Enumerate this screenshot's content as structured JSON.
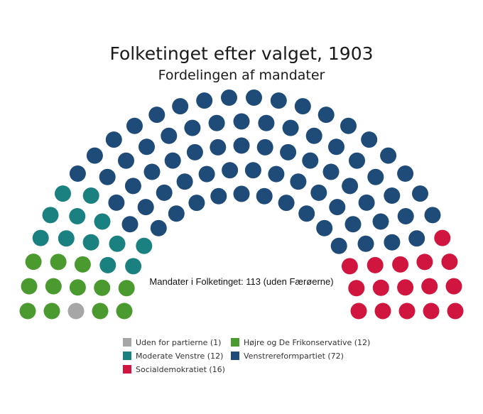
{
  "chart_data": {
    "type": "parliament",
    "title": "Folketinget efter valget, 1903",
    "subtitle": "Fordelingen af mandater",
    "total_label": "Mandater i Folketinget: 113 (uden Færøerne)",
    "total_seats": 113,
    "series": [
      {
        "name": "Uden for partierne (1)",
        "value": 1,
        "color": "#a6a6a6"
      },
      {
        "name": "Højre og De Frikonservative (12)",
        "value": 12,
        "color": "#4a9a2f"
      },
      {
        "name": "Moderate Venstre (12)",
        "value": 12,
        "color": "#1a8080"
      },
      {
        "name": "Venstrereformpartiet (72)",
        "value": 72,
        "color": "#1f4b78"
      },
      {
        "name": "Socialdemokratiet (16)",
        "value": 16,
        "color": "#d0163e"
      }
    ],
    "legend_placement": "bottom"
  }
}
